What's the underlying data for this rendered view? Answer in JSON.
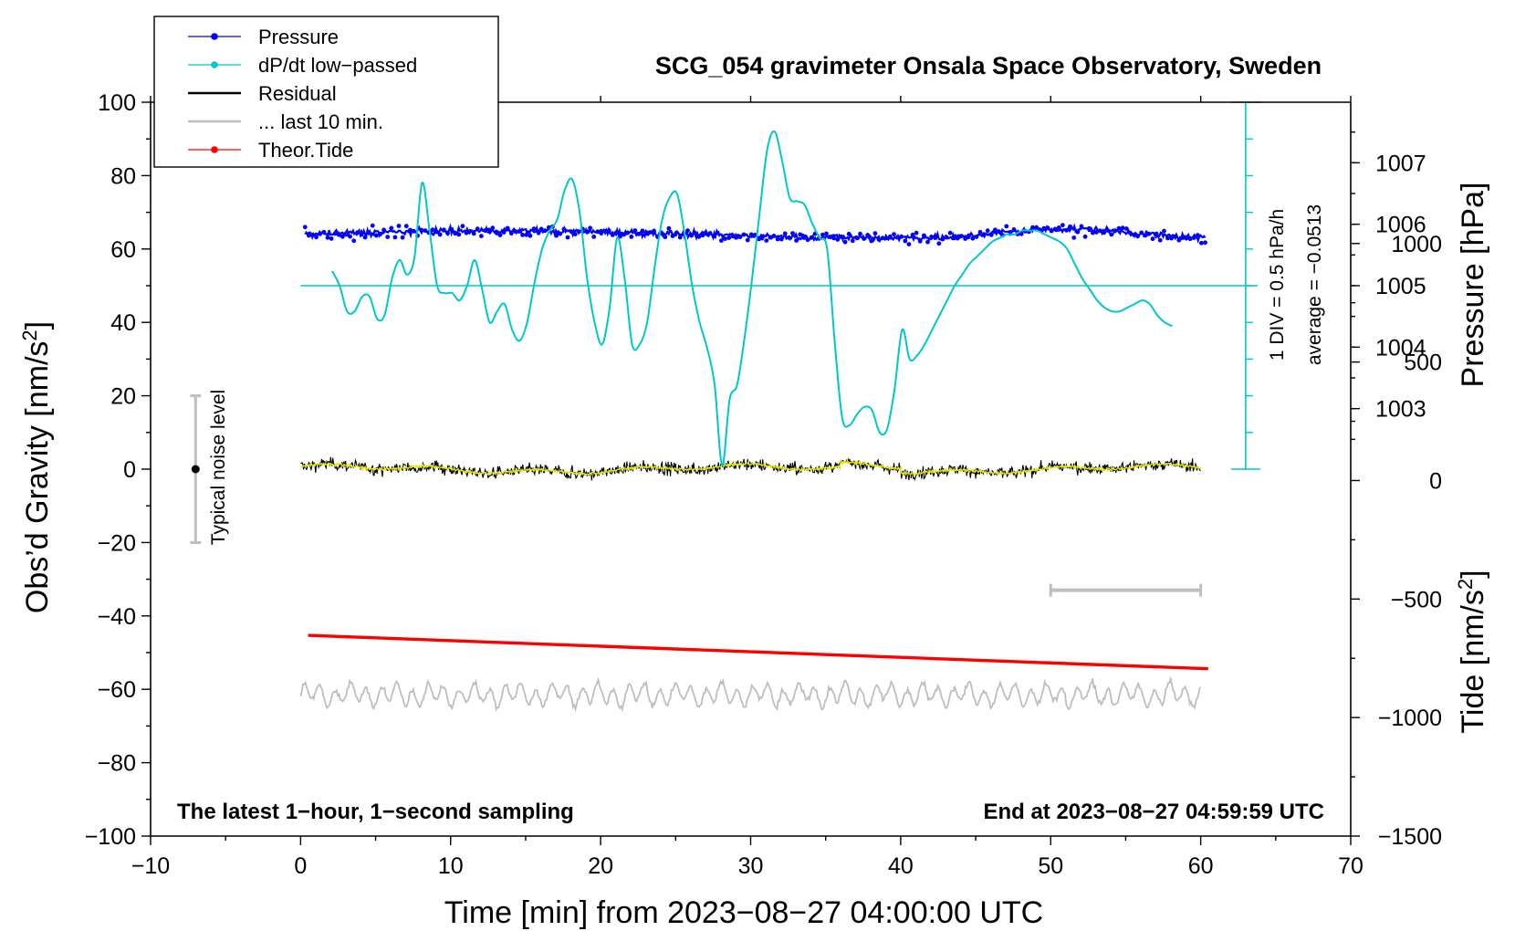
{
  "chart_data": {
    "type": "line",
    "title": "SCG_054 gravimeter Onsala Space Observatory, Sweden",
    "xlabel": "Time [min] from 2023−08−27 04:00:00 UTC",
    "ylabel_left": "Obs’d Gravity [nm/s",
    "ylabel_right_top": "Pressure [hPa]",
    "ylabel_right_bottom": "Tide [nm/s",
    "superscript": "2",
    "xlim": [
      -10,
      70
    ],
    "ylim": [
      -100,
      100
    ],
    "x_ticks": [
      "−10",
      "0",
      "10",
      "20",
      "30",
      "40",
      "50",
      "60",
      "70"
    ],
    "y_ticks": [
      "−100",
      "−80",
      "−60",
      "−40",
      "−20",
      "0",
      "20",
      "40",
      "60",
      "80",
      "100"
    ],
    "pressure_ticks": [
      "1003",
      "1004",
      "1005",
      "1006",
      "1007"
    ],
    "tide_ticks": [
      "−1500",
      "−1000",
      "−500",
      "0",
      "500",
      "1000"
    ],
    "legend": [
      {
        "label": "Pressure",
        "color": "#0000ff",
        "marker": true
      },
      {
        "label": "dP/dt low−passed",
        "color": "#00c8c8",
        "marker": true
      },
      {
        "label": "Residual",
        "color": "#000000",
        "marker": false
      },
      {
        "label": "... last 10 min.",
        "color": "#bebebe",
        "marker": false
      },
      {
        "label": "Theor.Tide",
        "color": "#ff0000",
        "marker": true
      }
    ],
    "annotations": {
      "noise": "Typical noise level",
      "div": "1 DIV = 0.5 hPa/h",
      "average": "average = −0.0513",
      "bottom_left": "The latest 1−hour, 1−second sampling",
      "bottom_right": "End at 2023−08−27 04:59:59 UTC"
    },
    "series": [
      {
        "name": "dP/dt low-passed",
        "unit": "nm/s2 plot units",
        "x": [
          2.1,
          2.6,
          3.1,
          3.6,
          4.1,
          4.6,
          5.1,
          5.6,
          6.1,
          6.6,
          7.1,
          7.6,
          8.1,
          8.6,
          9.1,
          9.6,
          10.1,
          10.6,
          11.1,
          11.6,
          12.1,
          12.6,
          13.1,
          13.6,
          14.1,
          14.6,
          15.1,
          15.6,
          16.1,
          16.6,
          17.1,
          17.6,
          18.1,
          18.6,
          19.1,
          19.6,
          20.1,
          20.6,
          21.1,
          21.6,
          22.1,
          22.6,
          23.1,
          23.6,
          24.1,
          24.6,
          25.1,
          25.6,
          26.1,
          26.6,
          27.1,
          27.6,
          28.1,
          28.6,
          29.1,
          29.6,
          30.1,
          30.6,
          31.1,
          31.6,
          32.1,
          32.6,
          33.1,
          33.6,
          34.1,
          34.6,
          35.1,
          35.6,
          36.1,
          36.6,
          37.1,
          37.6,
          38.1,
          38.6,
          39.1,
          39.6,
          40.1,
          40.6,
          41.1,
          41.6,
          42.1,
          42.6,
          43.1,
          43.6,
          44.1,
          44.6,
          45.1,
          45.6,
          46.1,
          46.6,
          47.1,
          47.6,
          48.1,
          48.6,
          49.1,
          49.6,
          50.1,
          50.6,
          51.1,
          51.6,
          52.1,
          52.6,
          53.1,
          53.6,
          54.1,
          54.6,
          55.1,
          55.6,
          56.1,
          56.6,
          57.1,
          57.6,
          58.1
        ],
        "y": [
          54,
          50,
          43,
          43,
          47,
          47,
          41,
          42,
          52,
          57,
          53,
          58,
          78,
          65,
          50,
          48,
          48,
          46,
          50,
          57,
          49,
          40,
          43,
          45,
          38,
          35,
          40,
          51,
          60,
          65,
          68,
          76,
          79,
          70,
          52,
          40,
          34,
          44,
          63,
          52,
          34,
          34,
          40,
          55,
          68,
          74,
          75,
          64,
          50,
          40,
          33,
          23,
          1,
          19,
          23,
          36,
          52,
          70,
          87,
          92,
          84,
          74,
          73,
          72,
          67,
          63,
          60,
          35,
          14,
          12,
          15,
          17,
          16,
          10,
          11,
          22,
          38,
          30,
          31,
          34,
          38,
          42,
          46,
          50,
          53,
          56,
          58,
          60,
          62,
          63,
          64,
          64,
          65,
          65,
          65,
          64,
          63,
          62,
          60,
          56,
          52,
          49,
          46,
          44,
          43,
          43,
          44,
          45,
          46,
          45,
          42,
          40,
          39
        ]
      }
    ]
  }
}
